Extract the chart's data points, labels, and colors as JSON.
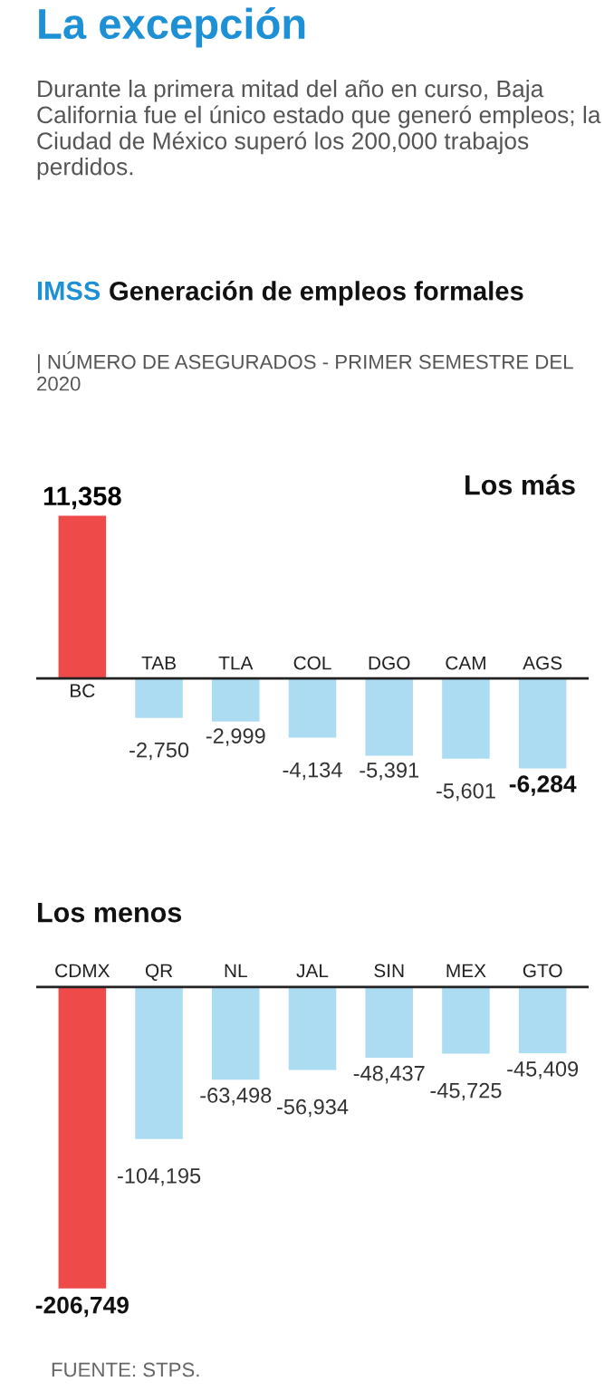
{
  "chart_data": [
    {
      "type": "bar",
      "title": "La excepción",
      "subtitle": "Durante la primera mitad del año en curso, Baja California fue el único estado que generó empleos; la Ciudad de México superó los 200,000 trabajos perdidos.",
      "annotations": [
        "IMSS",
        "Generación de empleos formales",
        "| NÚMERO DE ASEGURADOS - PRIMER SEMESTRE DEL 2020",
        "Los más"
      ],
      "categories": [
        "BC",
        "TAB",
        "TLA",
        "COL",
        "DGO",
        "CAM",
        "AGS"
      ],
      "values": [
        11358,
        -2750,
        -2999,
        -4134,
        -5391,
        -5601,
        -6284
      ],
      "colors": [
        "#ef4a4a",
        "#acdcf2",
        "#acdcf2",
        "#acdcf2",
        "#acdcf2",
        "#acdcf2",
        "#acdcf2"
      ],
      "value_labels": [
        "11,358",
        "-2,750",
        "-2,999",
        "-4,134",
        "-5,391",
        "-5,601",
        "-6,284"
      ]
    },
    {
      "type": "bar",
      "title": "Los menos",
      "annotations": [
        "FUENTE: STPS."
      ],
      "categories": [
        "CDMX",
        "QR",
        "NL",
        "JAL",
        "SIN",
        "MEX",
        "GTO"
      ],
      "values": [
        -206749,
        -104195,
        -63498,
        -56934,
        -48437,
        -45725,
        -45409
      ],
      "colors": [
        "#ef4a4a",
        "#acdcf2",
        "#acdcf2",
        "#acdcf2",
        "#acdcf2",
        "#acdcf2",
        "#acdcf2"
      ],
      "value_labels": [
        "-206,749",
        "-104,195",
        "-63,498",
        "-56,934",
        "-48,437",
        "-45,725",
        "-45,409"
      ]
    }
  ]
}
